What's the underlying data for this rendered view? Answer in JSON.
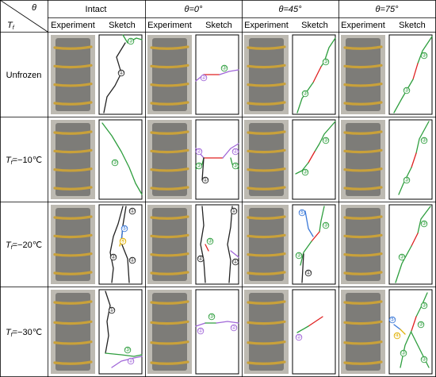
{
  "header": {
    "theta_label": "θ",
    "tf_label": "T",
    "tf_sub": "f",
    "groups": [
      "Intact",
      "θ=0°",
      "θ=45°",
      "θ=75°"
    ],
    "sub_experiment": "Experiment",
    "sub_sketch": "Sketch"
  },
  "rows": [
    {
      "label": "Unfrozen",
      "italic": false
    },
    {
      "label": "T",
      "sub": "f",
      "rest": "=−10℃",
      "italic": true
    },
    {
      "label": "T",
      "sub": "f",
      "rest": "=−20℃",
      "italic": true
    },
    {
      "label": "T",
      "sub": "f",
      "rest": "=−30℃",
      "italic": true
    }
  ],
  "marks": {
    "m1": "①",
    "m2": "②",
    "m3": "③",
    "m4": "④",
    "m5": "⑤"
  },
  "colors": {
    "crack_black": "#222222",
    "crack_green": "#2e9e3e",
    "crack_purple": "#a066d8",
    "crack_red": "#e02020",
    "crack_blue": "#3a78d8",
    "crack_yellow": "#e0b000",
    "band": "#c9a13a",
    "specimen": "#7d7c78"
  }
}
